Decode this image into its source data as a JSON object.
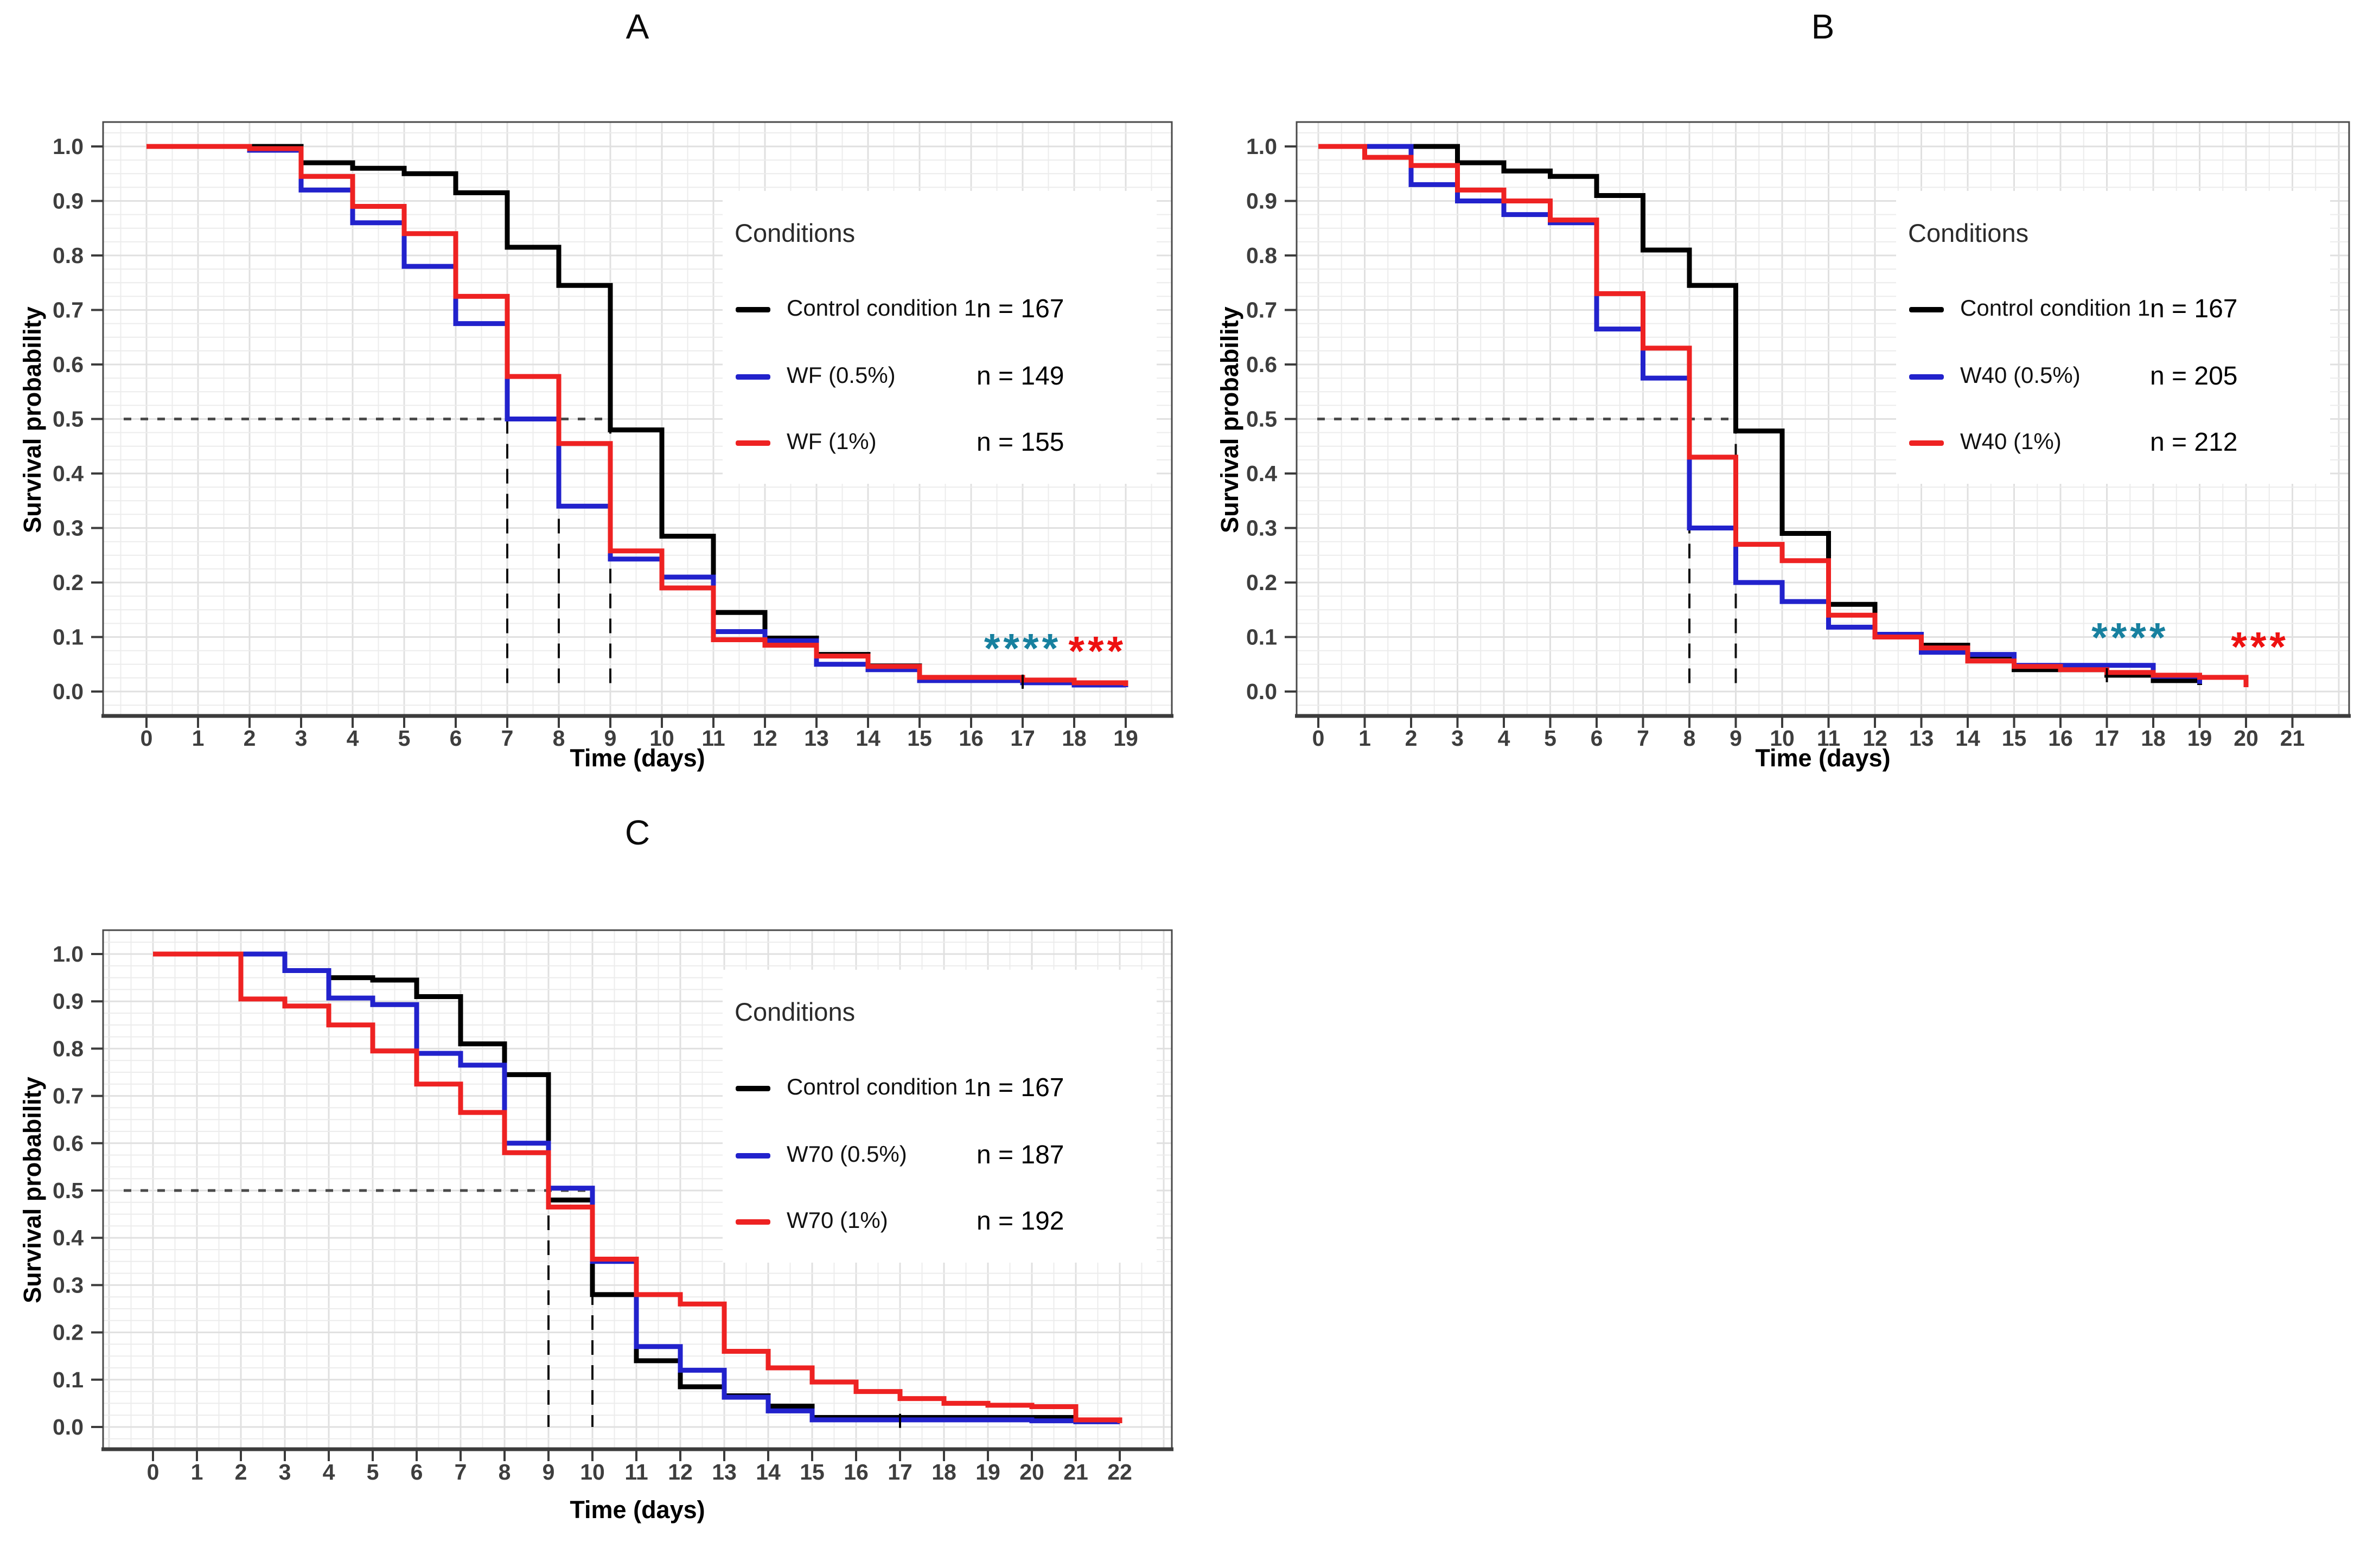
{
  "colors": {
    "control": "#000000",
    "dose05": "#2222cc",
    "dose1": "#ee2222",
    "sig_blue": "#17809f",
    "sig_red": "#ee1111",
    "median_dash": "#4a4a4a",
    "vertical_dash": "#111111",
    "grid_minor": "#ececec",
    "grid_major": "#e0e0e0",
    "panel_border": "#4a4a4a",
    "axis": "#3c3c3c",
    "tick_text": "#3e3e3e"
  },
  "chart_data": [
    {
      "id": "A",
      "type": "line",
      "subtype": "kaplan-meier-step",
      "panel_title": "A",
      "xlabel": "Time (days)",
      "ylabel": "Survival probability",
      "xlim": [
        0,
        19
      ],
      "ylim": [
        0.0,
        1.0
      ],
      "xticks": [
        0,
        1,
        2,
        3,
        4,
        5,
        6,
        7,
        8,
        9,
        10,
        11,
        12,
        13,
        14,
        15,
        16,
        17,
        18,
        19
      ],
      "ytick_step": 0.1,
      "grid": {
        "x_minor_step": 0.5,
        "y_minor_step": 0.025
      },
      "median_line_y": 0.5,
      "median_days": [
        7,
        8,
        9
      ],
      "legend": {
        "title": "Conditions",
        "position": "upper-right-inside",
        "entries": [
          {
            "label": "Control condition 1",
            "n_label": "n = 167",
            "color_key": "control"
          },
          {
            "label": "WF (0.5%)",
            "n_label": "n = 149",
            "color_key": "dose05"
          },
          {
            "label": "WF (1%)",
            "n_label": "n = 155",
            "color_key": "dose1"
          }
        ]
      },
      "annotations": [
        {
          "text": "****",
          "color_key": "sig_blue",
          "day": 17.0,
          "value": 0.085
        },
        {
          "text": "***",
          "color_key": "sig_red",
          "day": 18.45,
          "value": 0.08
        }
      ],
      "censor_ticks": [
        {
          "day": 17,
          "value": 0.018
        }
      ],
      "series": [
        {
          "name": "Control condition 1",
          "color_key": "control",
          "points": [
            [
              0,
              1
            ],
            [
              3,
              0.97
            ],
            [
              4,
              0.96
            ],
            [
              5,
              0.95
            ],
            [
              6,
              0.915
            ],
            [
              7,
              0.815
            ],
            [
              8,
              0.745
            ],
            [
              9,
              0.48
            ],
            [
              10,
              0.285
            ],
            [
              11,
              0.145
            ],
            [
              12,
              0.098
            ],
            [
              13,
              0.068
            ],
            [
              14,
              0.047
            ],
            [
              15,
              0.022
            ],
            [
              17,
              0.018
            ],
            [
              18,
              0.013
            ],
            [
              19,
              0.008
            ]
          ]
        },
        {
          "name": "WF (0.5%)",
          "color_key": "dose05",
          "points": [
            [
              0,
              1
            ],
            [
              2,
              0.993
            ],
            [
              3,
              0.92
            ],
            [
              4,
              0.86
            ],
            [
              5,
              0.78
            ],
            [
              6,
              0.675
            ],
            [
              7,
              0.5
            ],
            [
              8,
              0.34
            ],
            [
              9,
              0.243
            ],
            [
              10,
              0.21
            ],
            [
              11,
              0.11
            ],
            [
              12,
              0.093
            ],
            [
              13,
              0.05
            ],
            [
              14,
              0.04
            ],
            [
              15,
              0.02
            ],
            [
              17,
              0.016
            ],
            [
              18,
              0.012
            ],
            [
              19,
              0.008
            ]
          ]
        },
        {
          "name": "WF (1%)",
          "color_key": "dose1",
          "points": [
            [
              0,
              1
            ],
            [
              2,
              0.996
            ],
            [
              3,
              0.945
            ],
            [
              4,
              0.89
            ],
            [
              5,
              0.84
            ],
            [
              6,
              0.725
            ],
            [
              7,
              0.578
            ],
            [
              8,
              0.455
            ],
            [
              9,
              0.258
            ],
            [
              10,
              0.19
            ],
            [
              11,
              0.095
            ],
            [
              12,
              0.085
            ],
            [
              13,
              0.065
            ],
            [
              14,
              0.046
            ],
            [
              15,
              0.026
            ],
            [
              17,
              0.021
            ],
            [
              18,
              0.016
            ],
            [
              19,
              0.01
            ]
          ]
        }
      ]
    },
    {
      "id": "B",
      "type": "line",
      "subtype": "kaplan-meier-step",
      "panel_title": "B",
      "xlabel": "Time (days)",
      "ylabel": "Survival probability",
      "xlim": [
        0,
        21
      ],
      "ylim": [
        0.0,
        1.0
      ],
      "xticks": [
        0,
        1,
        2,
        3,
        4,
        5,
        6,
        7,
        8,
        9,
        10,
        11,
        12,
        13,
        14,
        15,
        16,
        17,
        18,
        19,
        20,
        21
      ],
      "ytick_step": 0.1,
      "grid": {
        "x_minor_step": 0.5,
        "y_minor_step": 0.025
      },
      "median_line_y": 0.5,
      "median_days": [
        8,
        9
      ],
      "legend": {
        "title": "Conditions",
        "position": "upper-right-inside",
        "entries": [
          {
            "label": "Control condition 1",
            "n_label": "n = 167",
            "color_key": "control"
          },
          {
            "label": "W40 (0.5%)",
            "n_label": "n = 205",
            "color_key": "dose05"
          },
          {
            "label": "W40 (1%)",
            "n_label": "n = 212",
            "color_key": "dose1"
          }
        ]
      },
      "annotations": [
        {
          "text": "****",
          "color_key": "sig_blue",
          "day": 17.5,
          "value": 0.105
        },
        {
          "text": "***",
          "color_key": "sig_red",
          "day": 20.3,
          "value": 0.088
        }
      ],
      "censor_ticks": [
        {
          "day": 17,
          "value": 0.03
        }
      ],
      "series": [
        {
          "name": "Control condition 1",
          "color_key": "control",
          "points": [
            [
              0,
              1
            ],
            [
              3,
              0.97
            ],
            [
              4,
              0.955
            ],
            [
              5,
              0.945
            ],
            [
              6,
              0.91
            ],
            [
              7,
              0.81
            ],
            [
              8,
              0.745
            ],
            [
              9,
              0.478
            ],
            [
              10,
              0.29
            ],
            [
              11,
              0.16
            ],
            [
              12,
              0.105
            ],
            [
              13,
              0.085
            ],
            [
              14,
              0.065
            ],
            [
              15,
              0.04
            ],
            [
              17,
              0.03
            ],
            [
              18,
              0.02
            ],
            [
              19,
              0.012
            ]
          ]
        },
        {
          "name": "W40 (0.5%)",
          "color_key": "dose05",
          "points": [
            [
              0,
              1
            ],
            [
              2,
              0.93
            ],
            [
              3,
              0.9
            ],
            [
              4,
              0.875
            ],
            [
              5,
              0.86
            ],
            [
              6,
              0.665
            ],
            [
              7,
              0.575
            ],
            [
              8,
              0.3
            ],
            [
              9,
              0.2
            ],
            [
              10,
              0.165
            ],
            [
              11,
              0.118
            ],
            [
              12,
              0.105
            ],
            [
              13,
              0.072
            ],
            [
              14,
              0.068
            ],
            [
              15,
              0.048
            ],
            [
              18,
              0.028
            ],
            [
              19,
              0.014
            ]
          ]
        },
        {
          "name": "W40 (1%)",
          "color_key": "dose1",
          "points": [
            [
              0,
              1
            ],
            [
              1,
              0.98
            ],
            [
              2,
              0.965
            ],
            [
              3,
              0.92
            ],
            [
              4,
              0.9
            ],
            [
              5,
              0.865
            ],
            [
              6,
              0.73
            ],
            [
              7,
              0.63
            ],
            [
              8,
              0.43
            ],
            [
              9,
              0.27
            ],
            [
              10,
              0.24
            ],
            [
              11,
              0.14
            ],
            [
              12,
              0.1
            ],
            [
              13,
              0.08
            ],
            [
              14,
              0.056
            ],
            [
              15,
              0.046
            ],
            [
              16,
              0.04
            ],
            [
              17,
              0.035
            ],
            [
              18,
              0.03
            ],
            [
              19,
              0.026
            ],
            [
              20,
              0.008
            ]
          ]
        }
      ]
    },
    {
      "id": "C",
      "type": "line",
      "subtype": "kaplan-meier-step",
      "panel_title": "C",
      "xlabel": "Time (days)",
      "ylabel": "Survival probability",
      "xlim": [
        0,
        22
      ],
      "ylim": [
        0.0,
        1.0
      ],
      "xticks": [
        0,
        1,
        2,
        3,
        4,
        5,
        6,
        7,
        8,
        9,
        10,
        11,
        12,
        13,
        14,
        15,
        16,
        17,
        18,
        19,
        20,
        21,
        22
      ],
      "ytick_step": 0.1,
      "grid": {
        "x_minor_step": 0.5,
        "y_minor_step": 0.025
      },
      "median_line_y": 0.5,
      "median_days": [
        9,
        10
      ],
      "legend": {
        "title": "Conditions",
        "position": "upper-right-inside",
        "entries": [
          {
            "label": "Control condition 1",
            "n_label": "n = 167",
            "color_key": "control"
          },
          {
            "label": "W70 (0.5%)",
            "n_label": "n = 187",
            "color_key": "dose05"
          },
          {
            "label": "W70 (1%)",
            "n_label": "n = 192",
            "color_key": "dose1"
          }
        ]
      },
      "annotations": [],
      "censor_ticks": [
        {
          "day": 17,
          "value": 0.013
        }
      ],
      "series": [
        {
          "name": "Control condition 1",
          "color_key": "control",
          "points": [
            [
              0,
              1
            ],
            [
              3,
              0.965
            ],
            [
              4,
              0.95
            ],
            [
              5,
              0.945
            ],
            [
              6,
              0.91
            ],
            [
              7,
              0.81
            ],
            [
              8,
              0.745
            ],
            [
              9,
              0.48
            ],
            [
              10,
              0.28
            ],
            [
              11,
              0.14
            ],
            [
              12,
              0.085
            ],
            [
              13,
              0.066
            ],
            [
              14,
              0.044
            ],
            [
              15,
              0.02
            ],
            [
              21,
              0.012
            ]
          ]
        },
        {
          "name": "W70 (0.5%)",
          "color_key": "dose05",
          "points": [
            [
              0,
              1
            ],
            [
              3,
              0.965
            ],
            [
              4,
              0.907
            ],
            [
              5,
              0.893
            ],
            [
              6,
              0.79
            ],
            [
              7,
              0.765
            ],
            [
              8,
              0.6
            ],
            [
              9,
              0.505
            ],
            [
              10,
              0.35
            ],
            [
              11,
              0.17
            ],
            [
              12,
              0.12
            ],
            [
              13,
              0.063
            ],
            [
              14,
              0.034
            ],
            [
              15,
              0.015
            ],
            [
              20,
              0.013
            ],
            [
              21,
              0.011
            ],
            [
              22,
              0.008
            ]
          ]
        },
        {
          "name": "W70 (1%)",
          "color_key": "dose1",
          "points": [
            [
              0,
              1
            ],
            [
              2,
              0.905
            ],
            [
              3,
              0.89
            ],
            [
              4,
              0.85
            ],
            [
              5,
              0.795
            ],
            [
              6,
              0.725
            ],
            [
              7,
              0.665
            ],
            [
              8,
              0.58
            ],
            [
              9,
              0.465
            ],
            [
              10,
              0.355
            ],
            [
              11,
              0.28
            ],
            [
              12,
              0.26
            ],
            [
              13,
              0.16
            ],
            [
              14,
              0.125
            ],
            [
              15,
              0.095
            ],
            [
              16,
              0.075
            ],
            [
              17,
              0.06
            ],
            [
              18,
              0.05
            ],
            [
              19,
              0.046
            ],
            [
              20,
              0.043
            ],
            [
              21,
              0.015
            ],
            [
              22,
              0.008
            ]
          ]
        }
      ]
    }
  ]
}
